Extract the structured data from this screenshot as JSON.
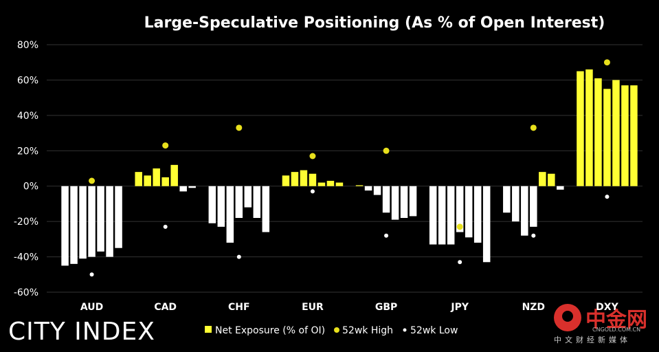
{
  "chart_data": {
    "type": "bar",
    "title": "Large-Speculative Positioning (As % of Open Interest)",
    "xlabel": "",
    "ylabel": "",
    "ylim": [
      -60,
      80
    ],
    "y_ticks": [
      "80%",
      "60%",
      "40%",
      "20%",
      "0%",
      "-20%",
      "-40%",
      "-60%"
    ],
    "y_tick_values": [
      80,
      60,
      40,
      20,
      0,
      -20,
      -40,
      -60
    ],
    "grid": true,
    "legend_position": "bottom",
    "categories": [
      "AUD",
      "CAD",
      "CHF",
      "EUR",
      "GBP",
      "JPY",
      "NZD",
      "DXY"
    ],
    "series": [
      {
        "name": "Net Exposure (% of OI)",
        "type": "bar",
        "values": [
          [
            -45,
            -44,
            -41,
            -40,
            -37,
            -40,
            -35
          ],
          [
            8,
            6,
            10,
            5,
            12,
            -3,
            -1
          ],
          [
            -21,
            -23,
            -32,
            -18,
            -12,
            -18,
            -26
          ],
          [
            6,
            8,
            9,
            7,
            2,
            3,
            2
          ],
          [
            0.5,
            -2.5,
            -5,
            -15,
            -19,
            -18,
            -17
          ],
          [
            -33,
            -33,
            -33,
            -26,
            -29,
            -32,
            -43
          ],
          [
            -15,
            -20,
            -28,
            -23,
            8,
            7,
            -2
          ],
          [
            65,
            66,
            61,
            55,
            60,
            57,
            57
          ]
        ]
      },
      {
        "name": "52wk High",
        "type": "scatter",
        "values": [
          3,
          23,
          33,
          17,
          20,
          -23,
          33,
          70
        ]
      },
      {
        "name": "52wk Low",
        "type": "scatter",
        "values": [
          -50,
          -23,
          -40,
          -3,
          -28,
          -43,
          -28,
          -6
        ]
      }
    ],
    "colors": {
      "positive_bar": "#ffff33",
      "negative_bar": "#ffffff",
      "high_marker": "#e8e01c",
      "low_marker": "#ffffff",
      "grid": "#333333",
      "background": "#000000"
    }
  },
  "branding": {
    "source": "CITY INDEX",
    "watermark_name": "中金网",
    "watermark_url": "CNGOLD.COM.CN",
    "watermark_sub": "中文财经新媒体"
  }
}
